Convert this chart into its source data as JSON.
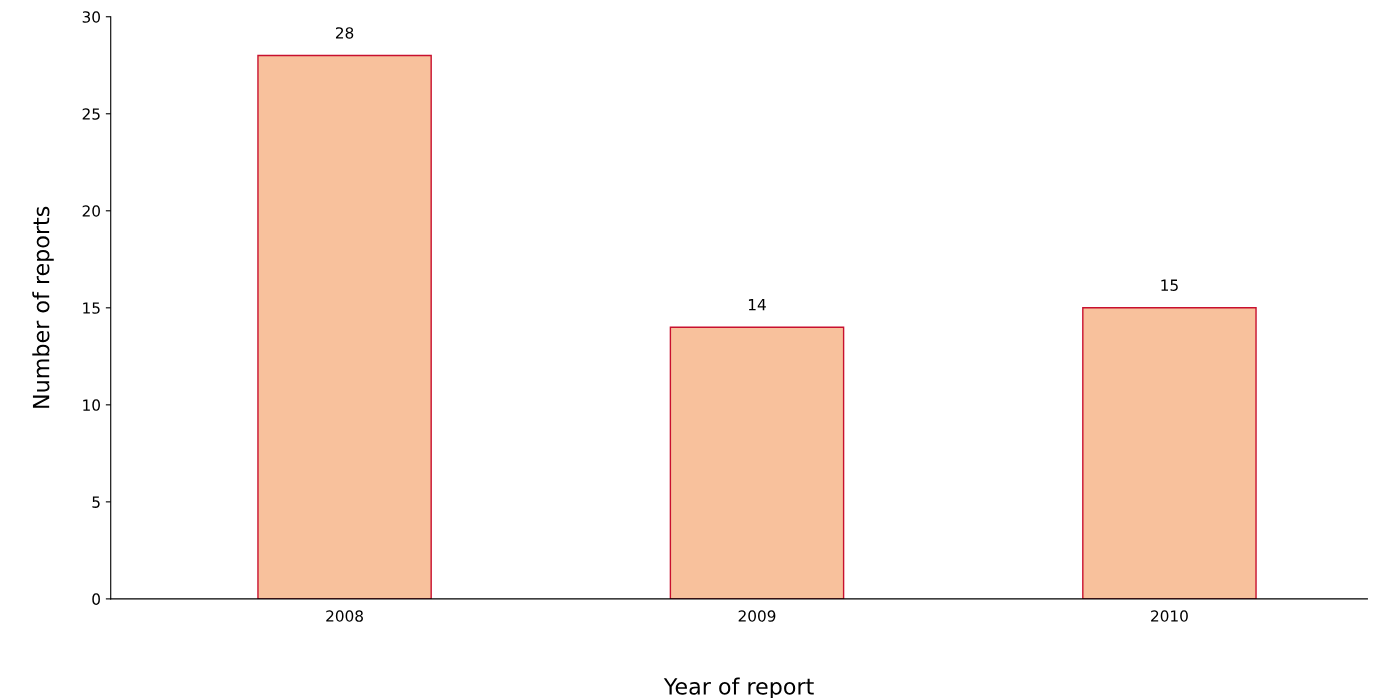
{
  "chart_data": {
    "type": "bar",
    "xlabel": "Year of report",
    "ylabel": "Number of reports",
    "categories": [
      "2008",
      "2009",
      "2010"
    ],
    "values": [
      28,
      14,
      15
    ],
    "color": "#f8c19c",
    "ylim": [
      0,
      30
    ],
    "yticks": [
      0,
      5,
      10,
      15,
      20,
      25,
      30
    ],
    "data_labels": true,
    "grid": false,
    "legend": false
  }
}
